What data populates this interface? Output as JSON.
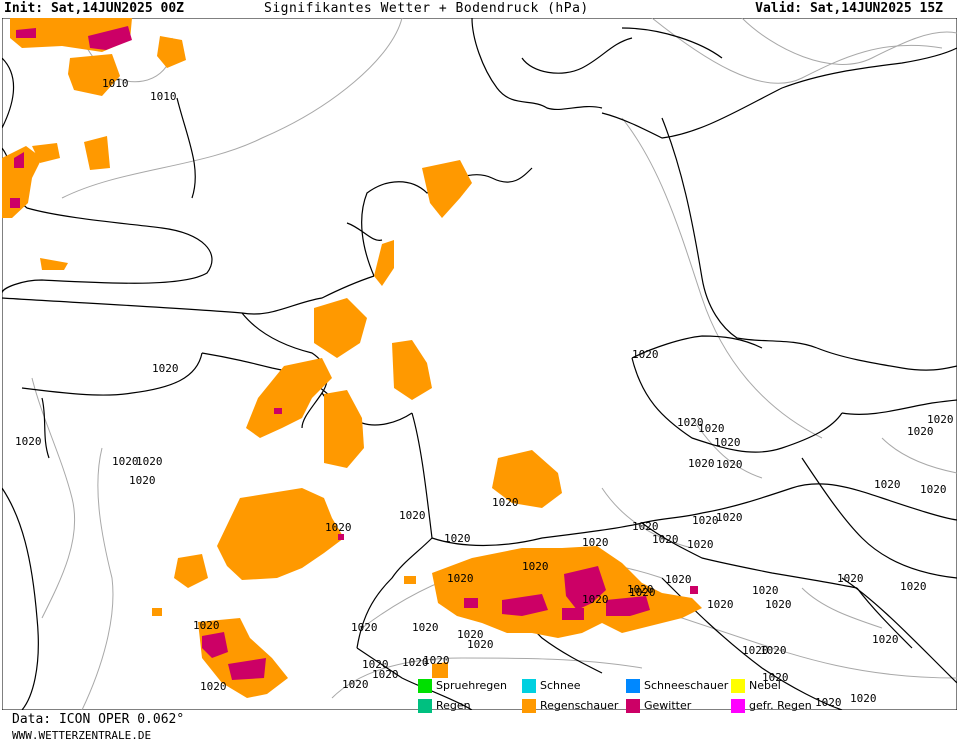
{
  "header": {
    "init": "Init: Sat,14JUN2025 00Z",
    "title": "Signifikantes Wetter + Bodendruck (hPa)",
    "valid": "Valid: Sat,14JUN2025 15Z"
  },
  "isobar_labels": [
    "1010",
    "1010",
    "1020",
    "1020",
    "1020",
    "1020",
    "1020",
    "1020",
    "1020",
    "1020",
    "1020",
    "1020",
    "1020",
    "1020",
    "1020",
    "1020",
    "1020",
    "1020",
    "1020",
    "1020",
    "1020",
    "1020",
    "1020",
    "1020",
    "1020",
    "1020",
    "1020",
    "1020",
    "1020",
    "1020",
    "1020",
    "1020",
    "1020",
    "1020",
    "1020",
    "1020",
    "1020",
    "1020",
    "1020",
    "1020",
    "1020",
    "1020",
    "1020",
    "1020",
    "1020",
    "1020",
    "1020",
    "1020",
    "1020",
    "1020",
    "1020",
    "1020",
    "1020",
    "1020",
    "1020"
  ],
  "legend": [
    {
      "label": "Spruehregen",
      "color": "#00e000"
    },
    {
      "label": "Regen",
      "color": "#00c080"
    },
    {
      "label": "Schnee",
      "color": "#00d0e0"
    },
    {
      "label": "Regenschauer",
      "color": "#ff9900"
    },
    {
      "label": "Schneeschauer",
      "color": "#0088ff"
    },
    {
      "label": "Gewitter",
      "color": "#cc0066"
    },
    {
      "label": "Nebel",
      "color": "#ffff00"
    },
    {
      "label": "gefr. Regen",
      "color": "#ff00ff"
    }
  ],
  "footer": {
    "data": "Data: ICON OPER 0.062°",
    "site": "WWW.WETTERZENTRALE.DE"
  }
}
